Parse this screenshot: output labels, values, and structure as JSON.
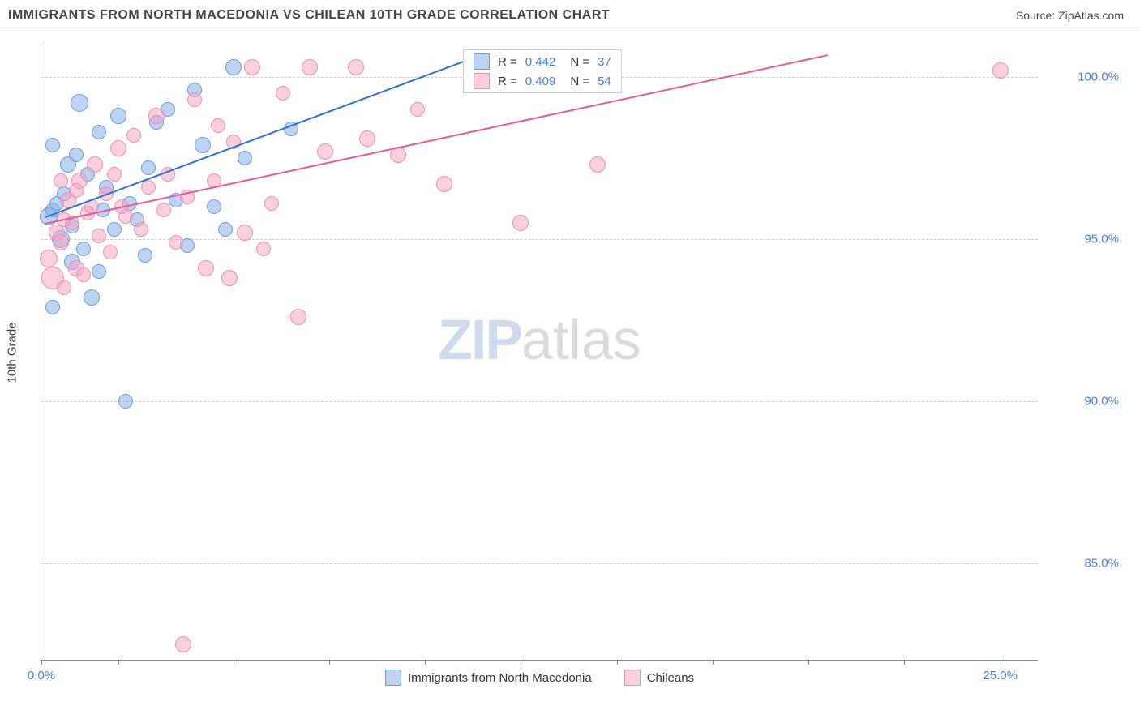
{
  "title": "IMMIGRANTS FROM NORTH MACEDONIA VS CHILEAN 10TH GRADE CORRELATION CHART",
  "source_label": "Source: ",
  "source_value": "ZipAtlas.com",
  "watermark_bold": "ZIP",
  "watermark_light": "atlas",
  "chart": {
    "type": "scatter",
    "xlim": [
      0,
      26
    ],
    "ylim": [
      82,
      101
    ],
    "x_axis_label": "",
    "y_axis_label": "10th Grade",
    "xtick_positions": [
      0,
      2,
      5,
      7.5,
      10,
      12.5,
      15,
      17.5,
      20,
      22.5,
      25
    ],
    "xtick_labels": {
      "0": "0.0%",
      "25": "25.0%"
    },
    "ytick_positions": [
      85,
      90,
      95,
      100
    ],
    "ytick_labels": [
      "85.0%",
      "90.0%",
      "95.0%",
      "100.0%"
    ],
    "grid_color": "#cccccc",
    "background_color": "#ffffff",
    "axis_color": "#888888",
    "tick_label_color": "#4a7fd8",
    "series": [
      {
        "name": "Immigrants from North Macedonia",
        "fill_color": "rgba(135,175,230,0.55)",
        "stroke_color": "#6a9de0",
        "line_color": "#2e6fd0",
        "trend": {
          "x1": 0.1,
          "y1": 95.7,
          "x2": 11.0,
          "y2": 100.5
        },
        "r_value": "0.442",
        "n_value": "37",
        "points": [
          {
            "x": 0.2,
            "y": 95.7,
            "r": 11
          },
          {
            "x": 0.3,
            "y": 95.9,
            "r": 9
          },
          {
            "x": 0.4,
            "y": 96.1,
            "r": 9
          },
          {
            "x": 0.5,
            "y": 95.0,
            "r": 11
          },
          {
            "x": 0.6,
            "y": 96.4,
            "r": 9
          },
          {
            "x": 0.7,
            "y": 97.3,
            "r": 10
          },
          {
            "x": 0.8,
            "y": 94.3,
            "r": 10
          },
          {
            "x": 0.9,
            "y": 97.6,
            "r": 9
          },
          {
            "x": 1.0,
            "y": 99.2,
            "r": 11
          },
          {
            "x": 1.1,
            "y": 94.7,
            "r": 9
          },
          {
            "x": 1.2,
            "y": 97.0,
            "r": 9
          },
          {
            "x": 1.3,
            "y": 93.2,
            "r": 10
          },
          {
            "x": 1.5,
            "y": 98.3,
            "r": 9
          },
          {
            "x": 1.5,
            "y": 94.0,
            "r": 9
          },
          {
            "x": 1.7,
            "y": 96.6,
            "r": 9
          },
          {
            "x": 1.9,
            "y": 95.3,
            "r": 9
          },
          {
            "x": 2.0,
            "y": 98.8,
            "r": 10
          },
          {
            "x": 2.2,
            "y": 90.0,
            "r": 9
          },
          {
            "x": 2.3,
            "y": 96.1,
            "r": 9
          },
          {
            "x": 2.5,
            "y": 95.6,
            "r": 9
          },
          {
            "x": 2.7,
            "y": 94.5,
            "r": 9
          },
          {
            "x": 2.8,
            "y": 97.2,
            "r": 9
          },
          {
            "x": 3.0,
            "y": 98.6,
            "r": 9
          },
          {
            "x": 3.3,
            "y": 99.0,
            "r": 9
          },
          {
            "x": 3.5,
            "y": 96.2,
            "r": 9
          },
          {
            "x": 3.8,
            "y": 94.8,
            "r": 9
          },
          {
            "x": 4.0,
            "y": 99.6,
            "r": 9
          },
          {
            "x": 4.2,
            "y": 97.9,
            "r": 10
          },
          {
            "x": 4.5,
            "y": 96.0,
            "r": 9
          },
          {
            "x": 4.8,
            "y": 95.3,
            "r": 9
          },
          {
            "x": 5.0,
            "y": 100.3,
            "r": 10
          },
          {
            "x": 5.3,
            "y": 97.5,
            "r": 9
          },
          {
            "x": 6.5,
            "y": 98.4,
            "r": 9
          },
          {
            "x": 0.3,
            "y": 92.9,
            "r": 9
          },
          {
            "x": 1.6,
            "y": 95.9,
            "r": 9
          },
          {
            "x": 0.8,
            "y": 95.4,
            "r": 9
          },
          {
            "x": 0.3,
            "y": 97.9,
            "r": 9
          }
        ]
      },
      {
        "name": "Chileans",
        "fill_color": "rgba(245,160,190,0.5)",
        "stroke_color": "#ea8fb5",
        "line_color": "#e55a9a",
        "trend": {
          "x1": 0.1,
          "y1": 95.5,
          "x2": 20.5,
          "y2": 100.7
        },
        "r_value": "0.409",
        "n_value": "54",
        "points": [
          {
            "x": 0.2,
            "y": 94.4,
            "r": 11
          },
          {
            "x": 0.3,
            "y": 93.8,
            "r": 14
          },
          {
            "x": 0.4,
            "y": 95.2,
            "r": 10
          },
          {
            "x": 0.5,
            "y": 94.9,
            "r": 10
          },
          {
            "x": 0.6,
            "y": 93.5,
            "r": 9
          },
          {
            "x": 0.7,
            "y": 96.2,
            "r": 10
          },
          {
            "x": 0.8,
            "y": 95.5,
            "r": 9
          },
          {
            "x": 0.9,
            "y": 94.1,
            "r": 10
          },
          {
            "x": 1.0,
            "y": 96.8,
            "r": 10
          },
          {
            "x": 1.1,
            "y": 93.9,
            "r": 9
          },
          {
            "x": 1.2,
            "y": 95.8,
            "r": 9
          },
          {
            "x": 1.4,
            "y": 97.3,
            "r": 10
          },
          {
            "x": 1.5,
            "y": 95.1,
            "r": 9
          },
          {
            "x": 1.7,
            "y": 96.4,
            "r": 9
          },
          {
            "x": 1.8,
            "y": 94.6,
            "r": 9
          },
          {
            "x": 2.0,
            "y": 97.8,
            "r": 10
          },
          {
            "x": 2.2,
            "y": 95.7,
            "r": 9
          },
          {
            "x": 2.4,
            "y": 98.2,
            "r": 9
          },
          {
            "x": 2.6,
            "y": 95.3,
            "r": 9
          },
          {
            "x": 2.8,
            "y": 96.6,
            "r": 9
          },
          {
            "x": 3.0,
            "y": 98.8,
            "r": 10
          },
          {
            "x": 3.2,
            "y": 95.9,
            "r": 9
          },
          {
            "x": 3.3,
            "y": 97.0,
            "r": 9
          },
          {
            "x": 3.5,
            "y": 94.9,
            "r": 9
          },
          {
            "x": 3.7,
            "y": 82.5,
            "r": 10
          },
          {
            "x": 3.8,
            "y": 96.3,
            "r": 9
          },
          {
            "x": 4.0,
            "y": 99.3,
            "r": 9
          },
          {
            "x": 4.3,
            "y": 94.1,
            "r": 10
          },
          {
            "x": 4.5,
            "y": 96.8,
            "r": 9
          },
          {
            "x": 4.9,
            "y": 93.8,
            "r": 10
          },
          {
            "x": 5.0,
            "y": 98.0,
            "r": 9
          },
          {
            "x": 5.3,
            "y": 95.2,
            "r": 10
          },
          {
            "x": 5.5,
            "y": 100.3,
            "r": 10
          },
          {
            "x": 5.8,
            "y": 94.7,
            "r": 9
          },
          {
            "x": 6.0,
            "y": 96.1,
            "r": 9
          },
          {
            "x": 6.3,
            "y": 99.5,
            "r": 9
          },
          {
            "x": 6.7,
            "y": 92.6,
            "r": 10
          },
          {
            "x": 7.0,
            "y": 100.3,
            "r": 10
          },
          {
            "x": 7.4,
            "y": 97.7,
            "r": 10
          },
          {
            "x": 8.2,
            "y": 100.3,
            "r": 10
          },
          {
            "x": 8.5,
            "y": 98.1,
            "r": 10
          },
          {
            "x": 9.3,
            "y": 97.6,
            "r": 10
          },
          {
            "x": 9.8,
            "y": 99.0,
            "r": 9
          },
          {
            "x": 10.5,
            "y": 96.7,
            "r": 10
          },
          {
            "x": 12.5,
            "y": 95.5,
            "r": 10
          },
          {
            "x": 14.5,
            "y": 97.3,
            "r": 10
          },
          {
            "x": 25.0,
            "y": 100.2,
            "r": 10
          },
          {
            "x": 0.6,
            "y": 95.6,
            "r": 9
          },
          {
            "x": 1.3,
            "y": 96.0,
            "r": 9
          },
          {
            "x": 2.1,
            "y": 96.0,
            "r": 9
          },
          {
            "x": 0.9,
            "y": 96.5,
            "r": 9
          },
          {
            "x": 4.6,
            "y": 98.5,
            "r": 9
          },
          {
            "x": 1.9,
            "y": 97.0,
            "r": 9
          },
          {
            "x": 0.5,
            "y": 96.8,
            "r": 9
          }
        ]
      }
    ],
    "legend_top": {
      "r_label": "R =",
      "n_label": "N ="
    }
  },
  "bottom_legend": [
    {
      "label": "Immigrants from North Macedonia",
      "fill": "rgba(135,175,230,0.55)",
      "stroke": "#6a9de0"
    },
    {
      "label": "Chileans",
      "fill": "rgba(245,160,190,0.5)",
      "stroke": "#ea8fb5"
    }
  ]
}
